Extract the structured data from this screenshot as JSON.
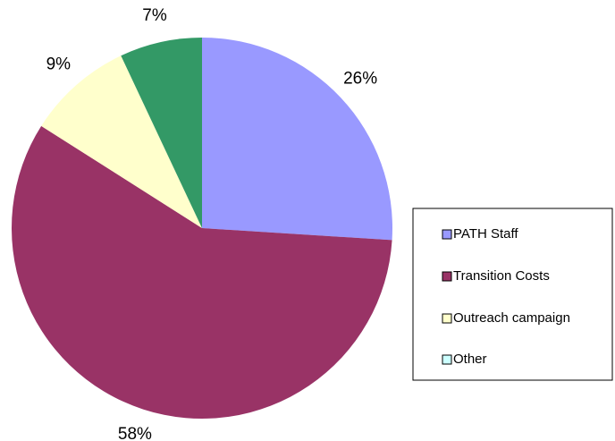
{
  "chart_data": {
    "type": "pie",
    "categories": [
      "PATH Staff",
      "Transition Costs",
      "Outreach campaign",
      "Other"
    ],
    "values": [
      26,
      58,
      9,
      7
    ],
    "value_labels": [
      "26%",
      "58%",
      "9%",
      "7%"
    ],
    "colors": [
      "#9999ff",
      "#993366",
      "#ffffcc",
      "#339966"
    ],
    "legend_colors": [
      "#9999ff",
      "#993366",
      "#ffffcc",
      "#ccffff"
    ],
    "legend": "right"
  }
}
